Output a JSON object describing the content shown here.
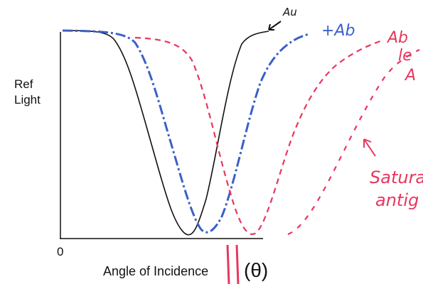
{
  "y_axis_label": [
    "Ref",
    "Light"
  ],
  "x_axis_origin": "0",
  "x_axis_label": "Angle of Incidence",
  "x_axis_symbol": "(θ)",
  "annotations": {
    "gold": "Au",
    "antibody": "+Ab",
    "antibody_antigen": [
      "Ab",
      "le",
      "A"
    ],
    "saturated": [
      "Satura",
      "antig"
    ]
  }
}
